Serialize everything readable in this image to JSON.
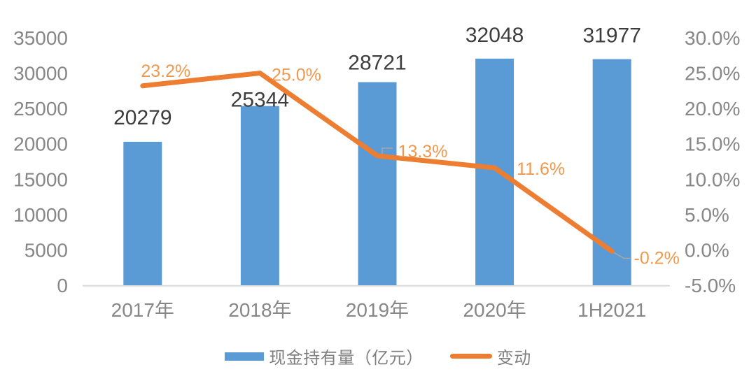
{
  "chart_data": {
    "type": "bar",
    "subtype": "combo-bar-line",
    "title": "",
    "categories": [
      "2017年",
      "2018年",
      "2019年",
      "2020年",
      "1H2021"
    ],
    "series": [
      {
        "name": "现金持有量（亿元）",
        "type": "bar",
        "axis": "left",
        "values": [
          20279,
          25344,
          28721,
          32048,
          31977
        ],
        "labels": [
          "20279",
          "25344",
          "28721",
          "32048",
          "31977"
        ],
        "color": "#5B9BD5",
        "label_color": "#3D3D3D"
      },
      {
        "name": "变动",
        "type": "line",
        "axis": "right",
        "values": [
          23.2,
          25.0,
          13.3,
          11.6,
          -0.2
        ],
        "labels": [
          "23.2%",
          "25.0%",
          "13.3%",
          "11.6%",
          "-0.2%"
        ],
        "color": "#ED7D31",
        "label_color": "#F0994E"
      }
    ],
    "left_axis": {
      "min": 0,
      "max": 35000,
      "ticks": [
        "35000",
        "30000",
        "25000",
        "20000",
        "15000",
        "10000",
        "5000",
        "0"
      ]
    },
    "right_axis": {
      "min": -5,
      "max": 30,
      "ticks": [
        "30.0%",
        "25.0%",
        "20.0%",
        "15.0%",
        "10.0%",
        "5.0%",
        "0.0%",
        "-5.0%"
      ]
    },
    "grid": false,
    "legend_position": "bottom",
    "tick_color": "#878787",
    "axis_line_color": "#D9D9D9",
    "leader_line_color": "#A6A6A6"
  },
  "legend": {
    "items": [
      {
        "label": "现金持有量（亿元）",
        "swatch": "bar",
        "color": "#5B9BD5"
      },
      {
        "label": "变动",
        "swatch": "line",
        "color": "#ED7D31"
      }
    ]
  }
}
